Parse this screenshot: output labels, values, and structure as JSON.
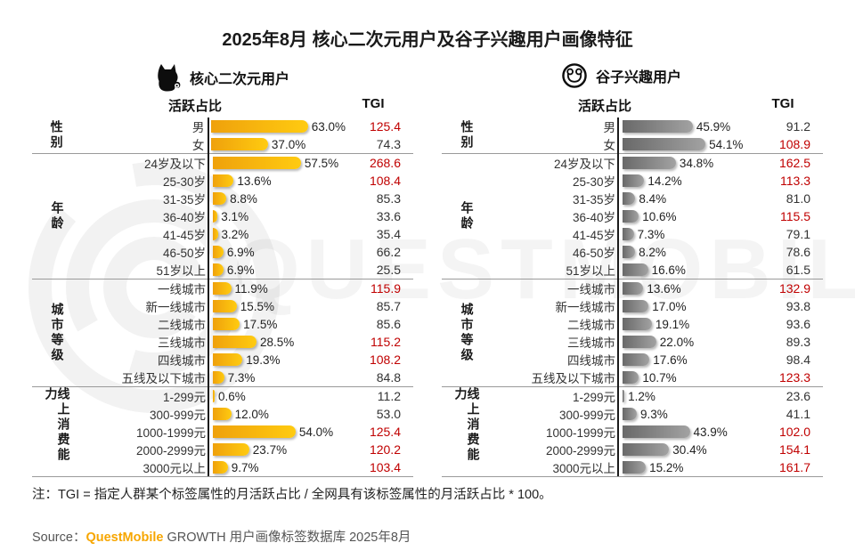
{
  "title": "2025年8月 核心二次元用户及谷子兴趣用户画像特征",
  "watermark": "QUESTMOBILE",
  "note": "注：TGI = 指定人群某个标签属性的月活跃占比 / 全网具有该标签属性的月活跃占比 * 100。",
  "source": {
    "prefix": "Source：",
    "brand": "QuestMobile",
    "rest": " GROWTH 用户画像标签数据库 2025年8月"
  },
  "colors": {
    "bar_left_gradient": [
      "#EFA10C",
      "#FFCB10"
    ],
    "bar_right_gradient": [
      "#696969",
      "#A2A2A2"
    ],
    "tgi_highlight": "#C00000",
    "brand_orange": "#F7A600"
  },
  "icons": {
    "left": "cat-icon",
    "right": "bear-badge-icon"
  },
  "chart_data": [
    {
      "type": "bar",
      "legend": "核心二次元用户",
      "bar_style": "yellow",
      "value_header": "活跃占比",
      "tgi_header": "TGI",
      "groups": [
        {
          "label": "性别",
          "rows": [
            {
              "label": "男",
              "value": 63.0,
              "pct": "63.0%",
              "tgi": "125.4"
            },
            {
              "label": "女",
              "value": 37.0,
              "pct": "37.0%",
              "tgi": "74.3"
            }
          ]
        },
        {
          "label": "年龄",
          "rows": [
            {
              "label": "24岁及以下",
              "value": 57.5,
              "pct": "57.5%",
              "tgi": "268.6"
            },
            {
              "label": "25-30岁",
              "value": 13.6,
              "pct": "13.6%",
              "tgi": "108.4"
            },
            {
              "label": "31-35岁",
              "value": 8.8,
              "pct": "8.8%",
              "tgi": "85.3"
            },
            {
              "label": "36-40岁",
              "value": 3.1,
              "pct": "3.1%",
              "tgi": "33.6"
            },
            {
              "label": "41-45岁",
              "value": 3.2,
              "pct": "3.2%",
              "tgi": "35.4"
            },
            {
              "label": "46-50岁",
              "value": 6.9,
              "pct": "6.9%",
              "tgi": "66.2"
            },
            {
              "label": "51岁以上",
              "value": 6.9,
              "pct": "6.9%",
              "tgi": "25.5"
            }
          ]
        },
        {
          "label": "城市等级",
          "rows": [
            {
              "label": "一线城市",
              "value": 11.9,
              "pct": "11.9%",
              "tgi": "115.9"
            },
            {
              "label": "新一线城市",
              "value": 15.5,
              "pct": "15.5%",
              "tgi": "85.7"
            },
            {
              "label": "二线城市",
              "value": 17.5,
              "pct": "17.5%",
              "tgi": "85.6"
            },
            {
              "label": "三线城市",
              "value": 28.5,
              "pct": "28.5%",
              "tgi": "115.2"
            },
            {
              "label": "四线城市",
              "value": 19.3,
              "pct": "19.3%",
              "tgi": "108.2"
            },
            {
              "label": "五线及以下城市",
              "value": 7.3,
              "pct": "7.3%",
              "tgi": "84.8"
            }
          ]
        },
        {
          "label": "线上消费能力",
          "rows": [
            {
              "label": "1-299元",
              "value": 0.6,
              "pct": "0.6%",
              "tgi": "11.2"
            },
            {
              "label": "300-999元",
              "value": 12.0,
              "pct": "12.0%",
              "tgi": "53.0"
            },
            {
              "label": "1000-1999元",
              "value": 54.0,
              "pct": "54.0%",
              "tgi": "125.4"
            },
            {
              "label": "2000-2999元",
              "value": 23.7,
              "pct": "23.7%",
              "tgi": "120.2"
            },
            {
              "label": "3000元以上",
              "value": 9.7,
              "pct": "9.7%",
              "tgi": "103.4"
            }
          ]
        }
      ]
    },
    {
      "type": "bar",
      "legend": "谷子兴趣用户",
      "bar_style": "gray",
      "value_header": "活跃占比",
      "tgi_header": "TGI",
      "groups": [
        {
          "label": "性别",
          "rows": [
            {
              "label": "男",
              "value": 45.9,
              "pct": "45.9%",
              "tgi": "91.2"
            },
            {
              "label": "女",
              "value": 54.1,
              "pct": "54.1%",
              "tgi": "108.9"
            }
          ]
        },
        {
          "label": "年龄",
          "rows": [
            {
              "label": "24岁及以下",
              "value": 34.8,
              "pct": "34.8%",
              "tgi": "162.5"
            },
            {
              "label": "25-30岁",
              "value": 14.2,
              "pct": "14.2%",
              "tgi": "113.3"
            },
            {
              "label": "31-35岁",
              "value": 8.4,
              "pct": "8.4%",
              "tgi": "81.0"
            },
            {
              "label": "36-40岁",
              "value": 10.6,
              "pct": "10.6%",
              "tgi": "115.5"
            },
            {
              "label": "41-45岁",
              "value": 7.3,
              "pct": "7.3%",
              "tgi": "79.1"
            },
            {
              "label": "46-50岁",
              "value": 8.2,
              "pct": "8.2%",
              "tgi": "78.6"
            },
            {
              "label": "51岁以上",
              "value": 16.6,
              "pct": "16.6%",
              "tgi": "61.5"
            }
          ]
        },
        {
          "label": "城市等级",
          "rows": [
            {
              "label": "一线城市",
              "value": 13.6,
              "pct": "13.6%",
              "tgi": "132.9"
            },
            {
              "label": "新一线城市",
              "value": 17.0,
              "pct": "17.0%",
              "tgi": "93.8"
            },
            {
              "label": "二线城市",
              "value": 19.1,
              "pct": "19.1%",
              "tgi": "93.6"
            },
            {
              "label": "三线城市",
              "value": 22.0,
              "pct": "22.0%",
              "tgi": "89.3"
            },
            {
              "label": "四线城市",
              "value": 17.6,
              "pct": "17.6%",
              "tgi": "98.4"
            },
            {
              "label": "五线及以下城市",
              "value": 10.7,
              "pct": "10.7%",
              "tgi": "123.3"
            }
          ]
        },
        {
          "label": "线上消费能力",
          "rows": [
            {
              "label": "1-299元",
              "value": 1.2,
              "pct": "1.2%",
              "tgi": "23.6"
            },
            {
              "label": "300-999元",
              "value": 9.3,
              "pct": "9.3%",
              "tgi": "41.1"
            },
            {
              "label": "1000-1999元",
              "value": 43.9,
              "pct": "43.9%",
              "tgi": "102.0"
            },
            {
              "label": "2000-2999元",
              "value": 30.4,
              "pct": "30.4%",
              "tgi": "154.1"
            },
            {
              "label": "3000元以上",
              "value": 15.2,
              "pct": "15.2%",
              "tgi": "161.7"
            }
          ]
        }
      ]
    }
  ]
}
